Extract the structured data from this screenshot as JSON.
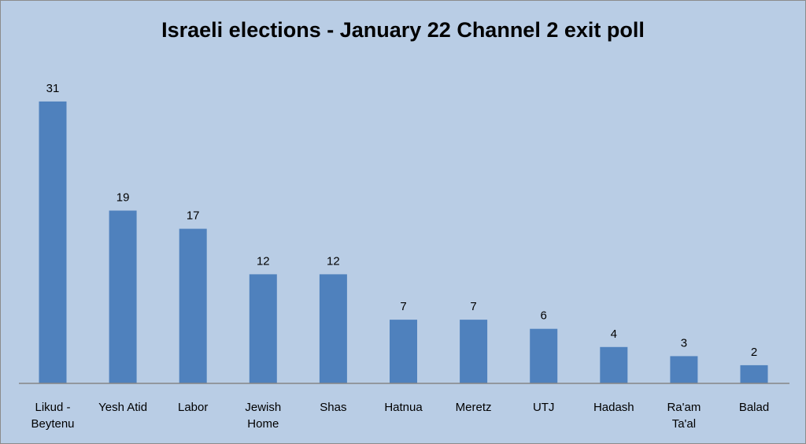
{
  "chart_data": {
    "type": "bar",
    "title": "Israeli elections - January 22 Channel 2 exit poll",
    "categories": [
      [
        "Likud -",
        "Beytenu"
      ],
      [
        "Yesh Atid"
      ],
      [
        "Labor"
      ],
      [
        "Jewish",
        "Home"
      ],
      [
        "Shas"
      ],
      [
        "Hatnua"
      ],
      [
        "Meretz"
      ],
      [
        "UTJ"
      ],
      [
        "Hadash"
      ],
      [
        "Ra'am",
        "Ta'al"
      ],
      [
        "Balad"
      ]
    ],
    "values": [
      31,
      19,
      17,
      12,
      12,
      7,
      7,
      6,
      4,
      3,
      2
    ],
    "data_labels": [
      "31",
      "19",
      "17",
      "12",
      "12",
      "7",
      "7",
      "6",
      "4",
      "3",
      "2"
    ],
    "xlabel": "",
    "ylabel": "",
    "ylim": [
      0,
      35
    ],
    "grid": false,
    "legend": "none",
    "colors": {
      "bar": "#4f81bd",
      "plot_background": "#b9cde5",
      "axis": "#868686"
    }
  }
}
